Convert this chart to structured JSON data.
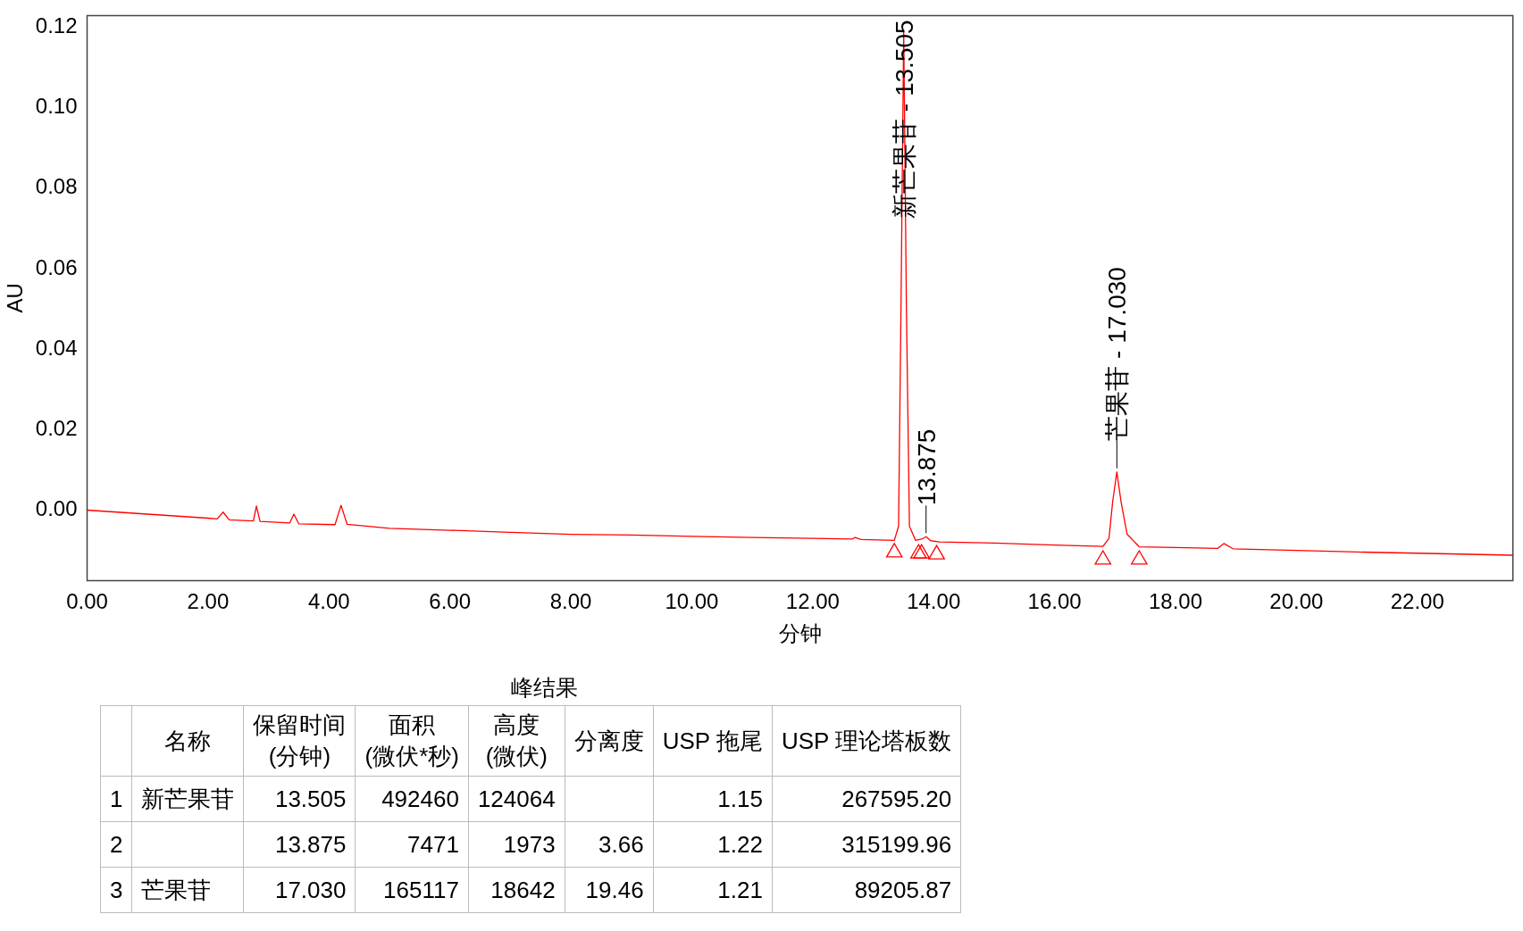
{
  "chart_data": {
    "type": "line",
    "xlabel": "分钟",
    "ylabel": "AU",
    "xlim": [
      0,
      23.58
    ],
    "ylim": [
      -0.0175,
      0.1229
    ],
    "xticks": [
      {
        "value": 0,
        "label": "0.00"
      },
      {
        "value": 2,
        "label": "2.00"
      },
      {
        "value": 4,
        "label": "4.00"
      },
      {
        "value": 6,
        "label": "6.00"
      },
      {
        "value": 8,
        "label": "8.00"
      },
      {
        "value": 10,
        "label": "10.00"
      },
      {
        "value": 12,
        "label": "12.00"
      },
      {
        "value": 14,
        "label": "14.00"
      },
      {
        "value": 16,
        "label": "16.00"
      },
      {
        "value": 18,
        "label": "18.00"
      },
      {
        "value": 20,
        "label": "20.00"
      },
      {
        "value": 22,
        "label": "22.00"
      }
    ],
    "yticks": [
      {
        "value": 0,
        "label": "0.00"
      },
      {
        "value": 0.02,
        "label": "0.02"
      },
      {
        "value": 0.04,
        "label": "0.04"
      },
      {
        "value": 0.06,
        "label": "0.06"
      },
      {
        "value": 0.08,
        "label": "0.08"
      },
      {
        "value": 0.1,
        "label": "0.10"
      },
      {
        "value": 0.12,
        "label": "0.12"
      }
    ],
    "grid": false,
    "legend": false,
    "series": [
      {
        "color": "#ff0000",
        "marker": "none",
        "x": [
          0,
          1,
          2,
          2.15,
          2.25,
          2.35,
          2.75,
          2.8,
          2.86,
          3.35,
          3.42,
          3.5,
          4.1,
          4.2,
          4.3,
          5,
          6,
          7,
          8,
          9,
          10,
          11,
          12,
          12.65,
          12.7,
          12.8,
          13.35,
          13.42,
          13.46,
          13.505,
          13.55,
          13.6,
          13.7,
          13.8,
          13.875,
          13.95,
          14.1,
          15,
          16,
          16.8,
          16.9,
          16.96,
          17.03,
          17.1,
          17.2,
          17.4,
          18,
          18.7,
          18.8,
          18.95,
          20,
          21,
          22,
          23.58
        ],
        "values": [
          0,
          -0.001,
          -0.002,
          -0.0022,
          -0.0005,
          -0.0024,
          -0.0027,
          0.001,
          -0.0028,
          -0.0032,
          -0.001,
          -0.0034,
          -0.0036,
          0.0012,
          -0.0035,
          -0.0045,
          -0.005,
          -0.0055,
          -0.006,
          -0.0062,
          -0.0065,
          -0.0068,
          -0.007,
          -0.0072,
          -0.0068,
          -0.0073,
          -0.0075,
          -0.004,
          0.05,
          0.119,
          0.05,
          -0.004,
          -0.0075,
          -0.0072,
          -0.0066,
          -0.0076,
          -0.0079,
          -0.0082,
          -0.0087,
          -0.009,
          -0.007,
          0.002,
          0.0095,
          0.002,
          -0.006,
          -0.0091,
          -0.0093,
          -0.0095,
          -0.0083,
          -0.0096,
          -0.01,
          -0.0104,
          -0.0107,
          -0.0112
        ]
      },
      {
        "type": "scatter",
        "color": "#ff0000",
        "marker": "triangle",
        "x": [
          13.35,
          13.75,
          13.8,
          14.05,
          16.8,
          17.4
        ],
        "values": [
          -0.0105,
          -0.0108,
          -0.0108,
          -0.011,
          -0.0123,
          -0.0123
        ]
      }
    ],
    "annotations": [
      {
        "text": "新芒果苷 - 13.505",
        "x": 13.505,
        "y": 0.119
      },
      {
        "text": "13.875",
        "x": 13.875,
        "y": -0.0066
      },
      {
        "text": "芒果苷 - 17.030",
        "x": 17.03,
        "y": 0.0095
      },
      "峰结果",
      null,
      "名称",
      "保留时间\n(分钟)",
      "面积\n(微伏*秒)",
      "高度\n(微伏)",
      "分离度",
      "USP 拖尾",
      "USP 理论塔板数",
      "1",
      "新芒果苷",
      "13.505",
      "492460",
      "124064",
      null,
      "1.15",
      "267595.20",
      "2",
      null,
      "13.875",
      "7471",
      "1973",
      "3.66",
      "1.22",
      "315199.96",
      "3",
      "芒果苷",
      "17.030",
      "165117",
      "18642",
      "19.46",
      "1.21",
      "89205.87"
    ]
  }
}
